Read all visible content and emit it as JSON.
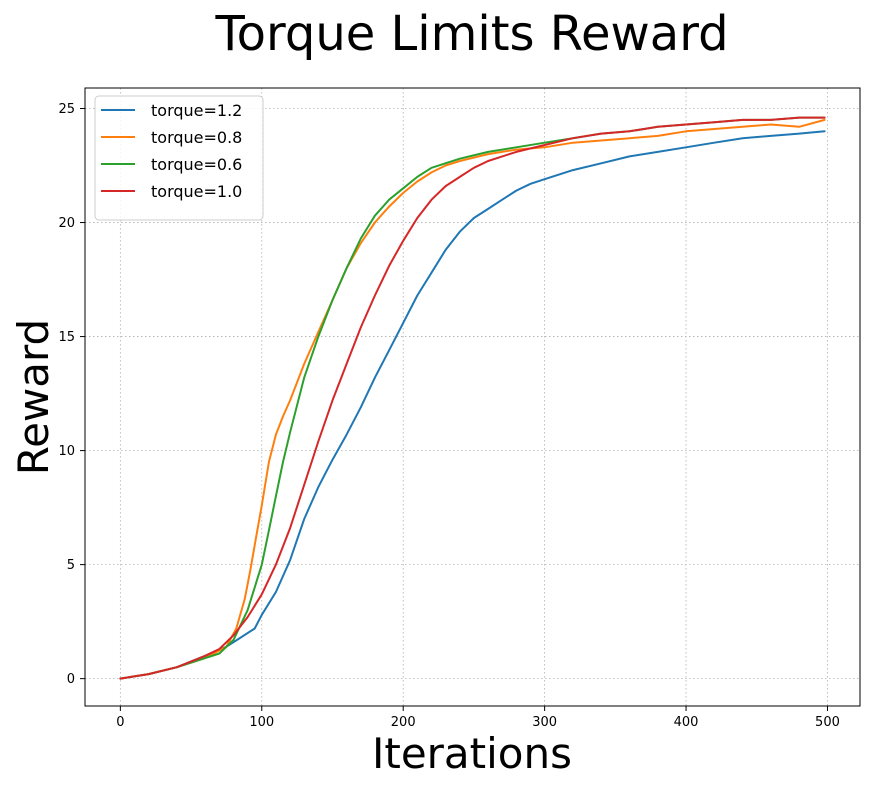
{
  "chart_data": {
    "type": "line",
    "title": "Torque Limits Reward",
    "xlabel": "Iterations",
    "ylabel": "Reward",
    "xlim": [
      -25,
      523
    ],
    "ylim": [
      -1.2,
      25.9
    ],
    "xticks": [
      0,
      100,
      200,
      300,
      400,
      500
    ],
    "yticks": [
      0,
      5,
      10,
      15,
      20,
      25
    ],
    "grid": true,
    "legend_position": "top-left",
    "series": [
      {
        "name": "torque=1.2",
        "color": "#1f77b4",
        "x": [
          0,
          20,
          40,
          60,
          75,
          85,
          95,
          100,
          110,
          120,
          130,
          140,
          150,
          160,
          170,
          180,
          190,
          200,
          210,
          220,
          230,
          240,
          250,
          260,
          270,
          280,
          290,
          300,
          320,
          340,
          360,
          380,
          400,
          420,
          440,
          460,
          480,
          498
        ],
        "y": [
          0,
          0.2,
          0.5,
          1.0,
          1.4,
          1.8,
          2.2,
          2.8,
          3.8,
          5.2,
          7.0,
          8.4,
          9.6,
          10.7,
          11.9,
          13.2,
          14.4,
          15.6,
          16.8,
          17.8,
          18.8,
          19.6,
          20.2,
          20.6,
          21.0,
          21.4,
          21.7,
          21.9,
          22.3,
          22.6,
          22.9,
          23.1,
          23.3,
          23.5,
          23.7,
          23.8,
          23.9,
          24.0
        ]
      },
      {
        "name": "torque=0.8",
        "color": "#ff7f0e",
        "x": [
          0,
          20,
          40,
          60,
          75,
          82,
          88,
          92,
          96,
          100,
          105,
          110,
          115,
          120,
          130,
          140,
          150,
          160,
          170,
          180,
          190,
          200,
          210,
          220,
          230,
          240,
          260,
          280,
          300,
          320,
          340,
          360,
          380,
          400,
          420,
          440,
          460,
          480,
          498
        ],
        "y": [
          0,
          0.2,
          0.5,
          0.9,
          1.4,
          2.2,
          3.5,
          4.8,
          6.2,
          7.6,
          9.5,
          10.7,
          11.5,
          12.2,
          13.8,
          15.2,
          16.6,
          18.0,
          19.1,
          20.0,
          20.7,
          21.3,
          21.8,
          22.2,
          22.5,
          22.7,
          23.0,
          23.2,
          23.3,
          23.5,
          23.6,
          23.7,
          23.8,
          24.0,
          24.1,
          24.2,
          24.3,
          24.2,
          24.5
        ]
      },
      {
        "name": "torque=0.6",
        "color": "#2ca02c",
        "x": [
          0,
          20,
          40,
          60,
          70,
          80,
          90,
          95,
          100,
          105,
          110,
          115,
          120,
          130,
          140,
          150,
          160,
          170,
          180,
          190,
          200,
          210,
          220,
          240,
          260,
          280,
          300,
          320,
          340,
          360,
          380,
          400,
          420,
          440,
          460,
          480,
          498
        ],
        "y": [
          0,
          0.2,
          0.5,
          0.9,
          1.1,
          1.7,
          3.0,
          4.0,
          5.0,
          6.5,
          8.0,
          9.5,
          10.8,
          13.2,
          15.0,
          16.6,
          18.0,
          19.3,
          20.3,
          21.0,
          21.5,
          22.0,
          22.4,
          22.8,
          23.1,
          23.3,
          23.5,
          23.7,
          23.9,
          24.0,
          24.2,
          24.3,
          24.4,
          24.5,
          24.5,
          24.6,
          24.6
        ]
      },
      {
        "name": "torque=1.0",
        "color": "#d62728",
        "x": [
          0,
          20,
          40,
          60,
          70,
          80,
          90,
          100,
          110,
          120,
          130,
          140,
          150,
          160,
          170,
          180,
          190,
          200,
          210,
          220,
          230,
          240,
          250,
          260,
          280,
          300,
          320,
          340,
          360,
          380,
          400,
          420,
          440,
          460,
          480,
          498
        ],
        "y": [
          0,
          0.2,
          0.5,
          1.0,
          1.3,
          1.9,
          2.7,
          3.7,
          5.0,
          6.6,
          8.5,
          10.4,
          12.2,
          13.8,
          15.4,
          16.8,
          18.1,
          19.2,
          20.2,
          21.0,
          21.6,
          22.0,
          22.4,
          22.7,
          23.1,
          23.4,
          23.7,
          23.9,
          24.0,
          24.2,
          24.3,
          24.4,
          24.5,
          24.5,
          24.6,
          24.6
        ]
      }
    ]
  }
}
